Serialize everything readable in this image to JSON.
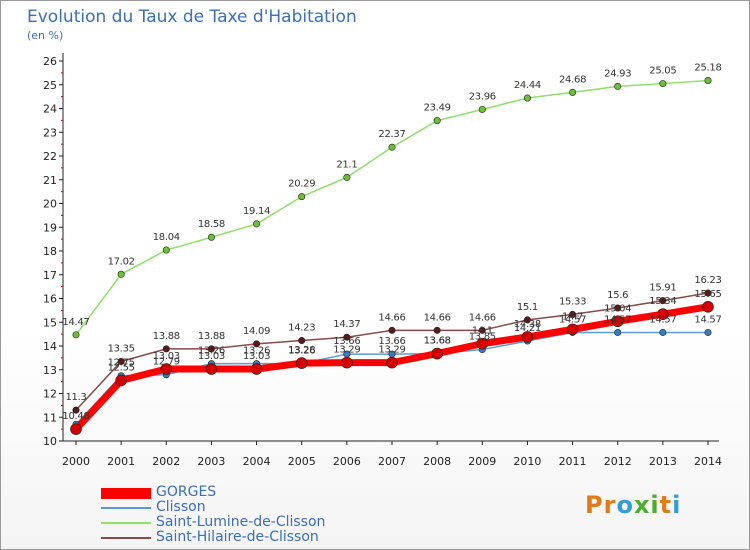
{
  "chart_data": {
    "type": "line",
    "title": "Evolution du Taux de Taxe d'Habitation",
    "subtitle": "(en %)",
    "x": [
      "2000",
      "2001",
      "2002",
      "2003",
      "2004",
      "2005",
      "2006",
      "2007",
      "2008",
      "2009",
      "2010",
      "2011",
      "2012",
      "2013",
      "2014"
    ],
    "y_ticks": [
      "10",
      "11",
      "12",
      "13",
      "14",
      "15",
      "16",
      "17",
      "18",
      "19",
      "20",
      "21",
      "22",
      "23",
      "24",
      "25",
      "26"
    ],
    "ylim": [
      10,
      26
    ],
    "grid": false,
    "series": [
      {
        "name": "GORGES",
        "color": "#ff0000",
        "marker": "#d40000",
        "values": [
          10.5,
          12.55,
          13.03,
          13.03,
          13.03,
          13.28,
          13.3,
          13.3,
          13.68,
          14.1,
          14.38,
          14.7,
          15.04,
          15.34,
          15.65
        ],
        "labels": [
          "10.48",
          "12.55",
          "13.03",
          "13.03",
          "13.03",
          "13.28",
          "13.29",
          "13.29",
          "13.68",
          "14.1",
          "14.38",
          "14.7",
          "15.04",
          "15.34",
          "15.65"
        ]
      },
      {
        "name": "Clisson",
        "color": "#5b9bd5",
        "marker": "#3a7cc4",
        "values": [
          10.7,
          12.75,
          12.79,
          13.26,
          13.26,
          13.26,
          13.66,
          13.66,
          13.68,
          13.85,
          14.21,
          14.57,
          14.57,
          14.57,
          14.57
        ],
        "labels": [
          "",
          "12.75",
          "12.79",
          "13.26",
          "13.26",
          "13.26",
          "13.66",
          "13.66",
          "13.68",
          "13.85",
          "14.21",
          "14.57",
          "14.57",
          "14.57",
          "14.57"
        ]
      },
      {
        "name": "Saint-Lumine-de-Clisson",
        "color": "#8fdf6a",
        "marker": "#6bc036",
        "values": [
          14.47,
          17.02,
          18.04,
          18.58,
          19.14,
          20.29,
          21.1,
          22.37,
          23.49,
          23.96,
          24.44,
          24.68,
          24.93,
          25.05,
          25.18
        ],
        "labels": [
          "14.47",
          "17.02",
          "18.04",
          "18.58",
          "19.14",
          "20.29",
          "21.1",
          "22.37",
          "23.49",
          "23.96",
          "24.44",
          "24.68",
          "24.93",
          "25.05",
          "25.18"
        ]
      },
      {
        "name": "Saint-Hilaire-de-Clisson",
        "color": "#8a4a4a",
        "marker": "#5a1a1a",
        "values": [
          11.3,
          13.35,
          13.88,
          13.88,
          14.09,
          14.23,
          14.37,
          14.66,
          14.66,
          14.66,
          15.1,
          15.33,
          15.6,
          15.91,
          16.23
        ],
        "labels": [
          "11.3",
          "13.35",
          "13.88",
          "13.88",
          "14.09",
          "14.23",
          "14.37",
          "14.66",
          "14.66",
          "14.66",
          "15.1",
          "15.33",
          "15.6",
          "15.91",
          "16.23"
        ]
      }
    ]
  },
  "brand": {
    "name": "Proxiti",
    "letters": [
      "P",
      "r",
      "o",
      "x",
      "i",
      "t",
      "i"
    ],
    "colors": [
      "#e07b16",
      "#e07b16",
      "#2f9fd6",
      "#4bae2c",
      "#4bae2c",
      "#e07b16",
      "#2f9fd6"
    ]
  }
}
